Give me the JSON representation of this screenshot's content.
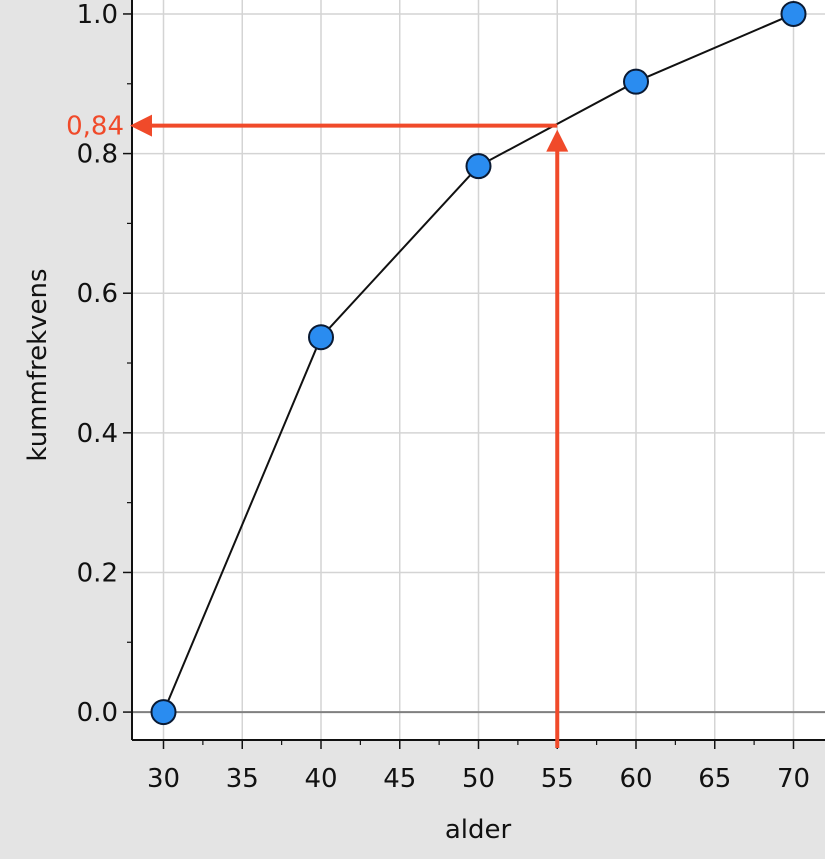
{
  "chart_data": {
    "type": "line",
    "xlabel": "alder",
    "ylabel": "kummfrekvens",
    "xlim": [
      28,
      72
    ],
    "ylim": [
      -0.04,
      1.02
    ],
    "x_ticks": [
      "30",
      "35",
      "40",
      "45",
      "50",
      "55",
      "60",
      "65",
      "70"
    ],
    "y_ticks": [
      "0.0",
      "0.2",
      "0.4",
      "0.6",
      "0.8",
      "1.0"
    ],
    "grid": true,
    "series": [
      {
        "x": [
          30,
          40,
          50,
          60,
          70
        ],
        "y": [
          0.0,
          0.537,
          0.782,
          0.903,
          1.0
        ]
      }
    ],
    "annotations": [
      {
        "type": "reading",
        "x": 55,
        "y": 0.84,
        "label": "0,84"
      }
    ],
    "colors": {
      "marker": "#2a8cf0",
      "line": "#111111",
      "annotation": "#f04a2a",
      "grid": "#d4d4d4"
    }
  }
}
